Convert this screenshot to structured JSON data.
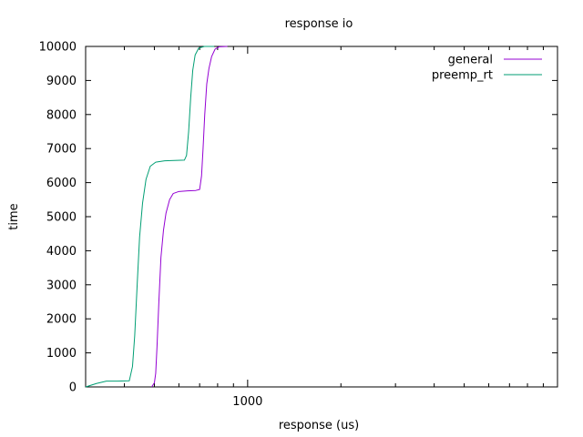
{
  "chart_data": {
    "type": "line",
    "title": "response io",
    "xlabel": "response (us)",
    "ylabel": "time",
    "x_scale": "log",
    "xlim": [
      300,
      10000
    ],
    "ylim": [
      0,
      10000
    ],
    "x_ticks": [
      1000
    ],
    "x_minor_ticks": [
      400,
      500,
      600,
      700,
      800,
      900,
      2000,
      3000,
      4000,
      5000,
      6000,
      7000,
      8000,
      9000
    ],
    "y_ticks": [
      0,
      1000,
      2000,
      3000,
      4000,
      5000,
      6000,
      7000,
      8000,
      9000,
      10000
    ],
    "grid": false,
    "legend_position": "top-right",
    "colors": {
      "general": "#9400D3",
      "preemp_rt": "#009E73"
    },
    "series": [
      {
        "name": "general",
        "color": "#9400D3",
        "points": [
          [
            490,
            0
          ],
          [
            500,
            120
          ],
          [
            505,
            400
          ],
          [
            510,
            1200
          ],
          [
            517,
            2500
          ],
          [
            525,
            3800
          ],
          [
            535,
            4600
          ],
          [
            545,
            5100
          ],
          [
            560,
            5500
          ],
          [
            575,
            5680
          ],
          [
            600,
            5740
          ],
          [
            640,
            5760
          ],
          [
            680,
            5770
          ],
          [
            700,
            5800
          ],
          [
            710,
            6200
          ],
          [
            718,
            7000
          ],
          [
            727,
            8000
          ],
          [
            738,
            8900
          ],
          [
            750,
            9350
          ],
          [
            765,
            9700
          ],
          [
            785,
            9920
          ],
          [
            810,
            9990
          ],
          [
            860,
            10000
          ]
        ]
      },
      {
        "name": "preemp_rt",
        "color": "#009E73",
        "points": [
          [
            300,
            0
          ],
          [
            325,
            100
          ],
          [
            350,
            170
          ],
          [
            380,
            170
          ],
          [
            415,
            180
          ],
          [
            425,
            600
          ],
          [
            432,
            1500
          ],
          [
            440,
            3000
          ],
          [
            448,
            4400
          ],
          [
            458,
            5400
          ],
          [
            470,
            6100
          ],
          [
            485,
            6480
          ],
          [
            505,
            6600
          ],
          [
            540,
            6640
          ],
          [
            580,
            6650
          ],
          [
            625,
            6660
          ],
          [
            635,
            6800
          ],
          [
            645,
            7500
          ],
          [
            655,
            8500
          ],
          [
            665,
            9300
          ],
          [
            677,
            9750
          ],
          [
            695,
            9950
          ],
          [
            725,
            10000
          ],
          [
            780,
            10000
          ]
        ]
      }
    ]
  }
}
